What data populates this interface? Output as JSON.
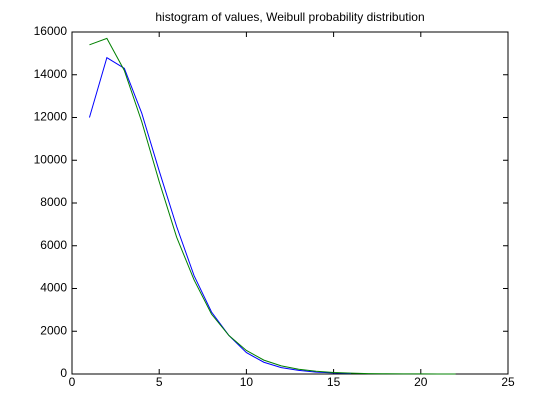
{
  "chart_data": {
    "type": "line",
    "title": "histogram of values, Weibull probability distribution",
    "series": [
      {
        "color": "#0000ff",
        "x": [
          1,
          2,
          3,
          4,
          5,
          6,
          7,
          8,
          9,
          10,
          11,
          12,
          13,
          14,
          15,
          16
        ],
        "values": [
          12000,
          14800,
          14300,
          12200,
          9500,
          6900,
          4600,
          2900,
          1800,
          1000,
          550,
          300,
          170,
          90,
          50,
          25
        ]
      },
      {
        "color": "#008000",
        "x": [
          1,
          2,
          3,
          4,
          5,
          6,
          7,
          8,
          9,
          10,
          11,
          12,
          13,
          14,
          15,
          16,
          17,
          18,
          19,
          20,
          21,
          22
        ],
        "values": [
          15400,
          15700,
          14200,
          11800,
          9000,
          6400,
          4400,
          2800,
          1800,
          1100,
          650,
          380,
          220,
          130,
          70,
          40,
          20,
          12,
          7,
          4,
          2,
          1
        ]
      }
    ],
    "xlim": [
      0,
      25
    ],
    "xticks": [
      0,
      5,
      10,
      15,
      20,
      25
    ],
    "ylim": [
      0,
      16000
    ],
    "yticks": [
      0,
      2000,
      4000,
      6000,
      8000,
      10000,
      12000,
      14000,
      16000
    ],
    "grid": false
  }
}
